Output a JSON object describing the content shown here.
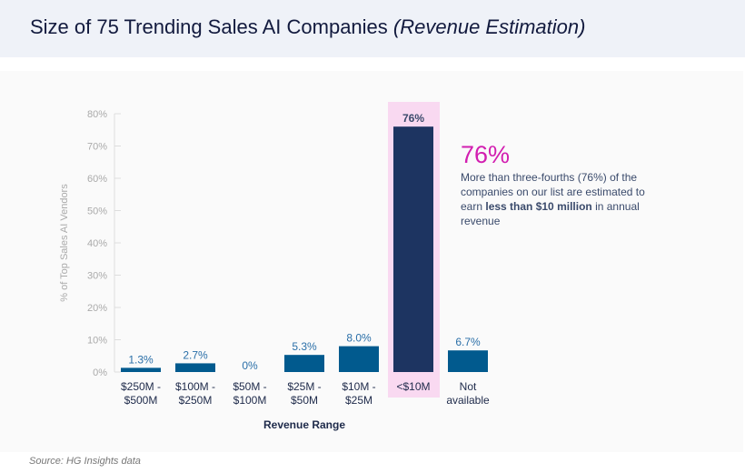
{
  "header": {
    "title": "Size of 75 Trending Sales AI Companies",
    "title_italic": "(Revenue Estimation)"
  },
  "chart_data": {
    "type": "bar",
    "categories": [
      [
        "$250M -",
        "$500M"
      ],
      [
        "$100M -",
        "$250M"
      ],
      [
        "$50M -",
        "$100M"
      ],
      [
        "$25M -",
        "$50M"
      ],
      [
        "$10M -",
        "$25M"
      ],
      [
        "<$10M"
      ],
      [
        "Not",
        "available"
      ]
    ],
    "values": [
      1.3,
      2.7,
      0,
      5.3,
      8.0,
      76,
      6.7
    ],
    "data_labels": [
      "1.3%",
      "2.7%",
      "0%",
      "5.3%",
      "8.0%",
      "76%",
      "6.7%"
    ],
    "highlight_index": 5,
    "xlabel": "Revenue Range",
    "ylabel": "% of Top Sales AI Vendors",
    "ylim": [
      0,
      80
    ],
    "yticks": [
      0,
      10,
      20,
      30,
      40,
      50,
      60,
      70,
      80
    ],
    "ytick_labels": [
      "0%",
      "10%",
      "20%",
      "30%",
      "40%",
      "50%",
      "60%",
      "70%",
      "80%"
    ],
    "grid": false,
    "colors": {
      "bar": "#015a8e",
      "highlight_bar": "#1d3461",
      "highlight_band": "#f9d9f1",
      "label": "#2a6fa8",
      "highlight_label": "#3a4a6b"
    }
  },
  "callout": {
    "big": "76%",
    "text_1": "More than three-fourths (76%) of the companies on our list are estimated to earn ",
    "bold_1": "less than $10 million",
    "text_2": " in annual revenue"
  },
  "source": "Source: HG Insights data"
}
